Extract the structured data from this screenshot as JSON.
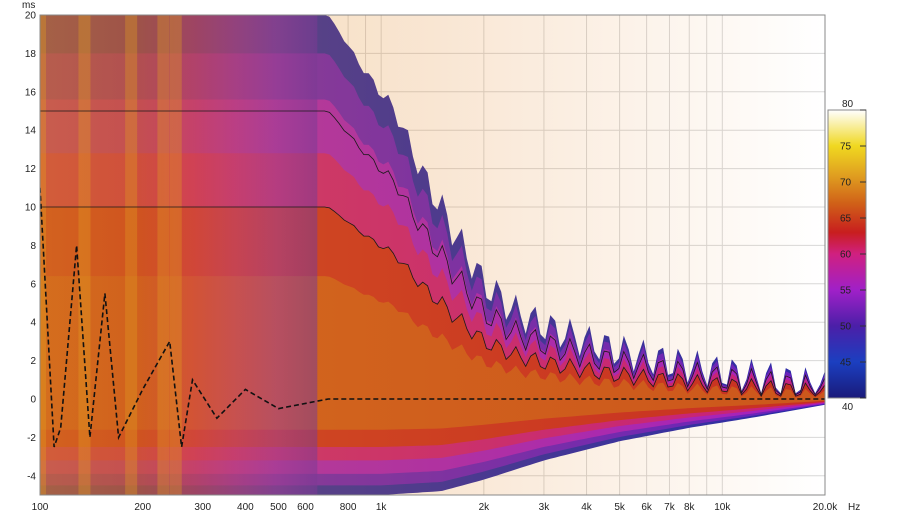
{
  "chart_data": {
    "type": "heatmap",
    "title": "",
    "xlabel": "Hz",
    "ylabel": "ms",
    "x_scale": "log",
    "xlim": [
      100,
      20000
    ],
    "ylim": [
      -5,
      20
    ],
    "grid": true,
    "x_ticks": [
      {
        "value": 100,
        "label": "100"
      },
      {
        "value": 200,
        "label": "200"
      },
      {
        "value": 300,
        "label": "300"
      },
      {
        "value": 400,
        "label": "400"
      },
      {
        "value": 500,
        "label": "500"
      },
      {
        "value": 600,
        "label": "600"
      },
      {
        "value": 800,
        "label": "800"
      },
      {
        "value": 1000,
        "label": "1k"
      },
      {
        "value": 2000,
        "label": "2k"
      },
      {
        "value": 3000,
        "label": "3k"
      },
      {
        "value": 4000,
        "label": "4k"
      },
      {
        "value": 5000,
        "label": "5k"
      },
      {
        "value": 6000,
        "label": "6k"
      },
      {
        "value": 7000,
        "label": "7k"
      },
      {
        "value": 8000,
        "label": "8k"
      },
      {
        "value": 10000,
        "label": "10k"
      },
      {
        "value": 20000,
        "label": "20.0k"
      }
    ],
    "x_gridlines": [
      100,
      200,
      300,
      400,
      500,
      600,
      700,
      800,
      900,
      1000,
      2000,
      3000,
      4000,
      5000,
      6000,
      7000,
      8000,
      9000,
      10000,
      20000
    ],
    "y_ticks": [
      -4,
      -2,
      0,
      2,
      4,
      6,
      8,
      10,
      12,
      14,
      16,
      18,
      20
    ],
    "colorbar": {
      "min": 40,
      "max": 80,
      "ticks": [
        40,
        45,
        50,
        55,
        60,
        65,
        70,
        75,
        80
      ],
      "placement": "right",
      "stops": [
        {
          "value": 40,
          "color": "#1a1a7a"
        },
        {
          "value": 45,
          "color": "#1b3fc0"
        },
        {
          "value": 50,
          "color": "#4b1fa8"
        },
        {
          "value": 55,
          "color": "#a020c8"
        },
        {
          "value": 60,
          "color": "#d02080"
        },
        {
          "value": 63,
          "color": "#c81e1e"
        },
        {
          "value": 67,
          "color": "#d06018"
        },
        {
          "value": 71,
          "color": "#e0a020"
        },
        {
          "value": 75,
          "color": "#f0d820"
        },
        {
          "value": 80,
          "color": "#ffffff"
        }
      ]
    },
    "surface": {
      "description_values": "approximate spectrogram level (dB) envelope; onset in ms vs frequency in Hz",
      "onset_curve": [
        {
          "x": 100,
          "y": -5
        },
        {
          "x": 500,
          "y": -5
        },
        {
          "x": 1000,
          "y": -5
        },
        {
          "x": 1500,
          "y": -4.8
        },
        {
          "x": 2000,
          "y": -4.2
        },
        {
          "x": 3000,
          "y": -3.2
        },
        {
          "x": 5000,
          "y": -2.2
        },
        {
          "x": 8000,
          "y": -1.5
        },
        {
          "x": 12000,
          "y": -1.0
        },
        {
          "x": 20000,
          "y": -0.3
        }
      ],
      "decay_ceiling": [
        {
          "x": 100,
          "y": 20
        },
        {
          "x": 500,
          "y": 20
        },
        {
          "x": 700,
          "y": 20
        },
        {
          "x": 900,
          "y": 17
        },
        {
          "x": 1100,
          "y": 15
        },
        {
          "x": 1300,
          "y": 12
        },
        {
          "x": 1600,
          "y": 9
        },
        {
          "x": 2000,
          "y": 6
        },
        {
          "x": 2500,
          "y": 4.5
        },
        {
          "x": 3000,
          "y": 3.8
        },
        {
          "x": 4000,
          "y": 3.0
        },
        {
          "x": 5000,
          "y": 2.5
        },
        {
          "x": 7000,
          "y": 1.9
        },
        {
          "x": 10000,
          "y": 1.4
        },
        {
          "x": 15000,
          "y": 1.0
        },
        {
          "x": 20000,
          "y": 0.6
        }
      ],
      "peak_ridge_dashed": [
        {
          "x": 100,
          "y": 11
        },
        {
          "x": 110,
          "y": -2.5
        },
        {
          "x": 115,
          "y": -1.5
        },
        {
          "x": 128,
          "y": 8
        },
        {
          "x": 140,
          "y": -2
        },
        {
          "x": 155,
          "y": 5.5
        },
        {
          "x": 170,
          "y": -2
        },
        {
          "x": 200,
          "y": 0.5
        },
        {
          "x": 240,
          "y": 3
        },
        {
          "x": 260,
          "y": -2.5
        },
        {
          "x": 280,
          "y": 1
        },
        {
          "x": 330,
          "y": -1
        },
        {
          "x": 400,
          "y": 0.5
        },
        {
          "x": 500,
          "y": -0.5
        },
        {
          "x": 700,
          "y": 0
        },
        {
          "x": 1000,
          "y": 0
        },
        {
          "x": 20000,
          "y": 0
        }
      ]
    }
  }
}
